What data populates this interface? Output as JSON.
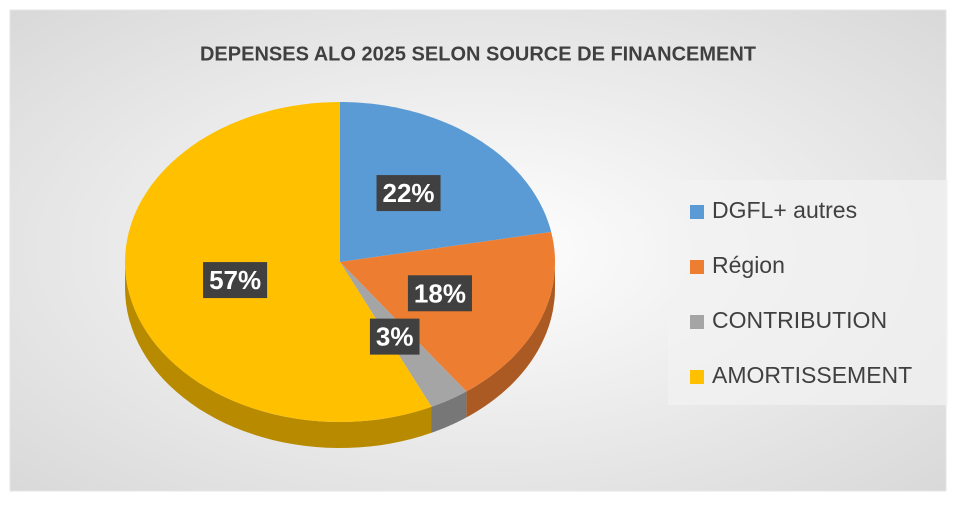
{
  "chart_data": {
    "type": "pie",
    "title": "DEPENSES ALO 2025 SELON SOURCE DE FINANCEMENT",
    "categories": [
      "DGFL+ autres",
      "Région",
      "CONTRIBUTION",
      "AMORTISSEMENT"
    ],
    "values": [
      22,
      18,
      3,
      57
    ],
    "value_labels": [
      "22%",
      "18%",
      "3%",
      "57%"
    ],
    "colors": [
      "#5b9bd5",
      "#ed7d31",
      "#a5a5a5",
      "#ffc000"
    ],
    "legend": "right"
  }
}
